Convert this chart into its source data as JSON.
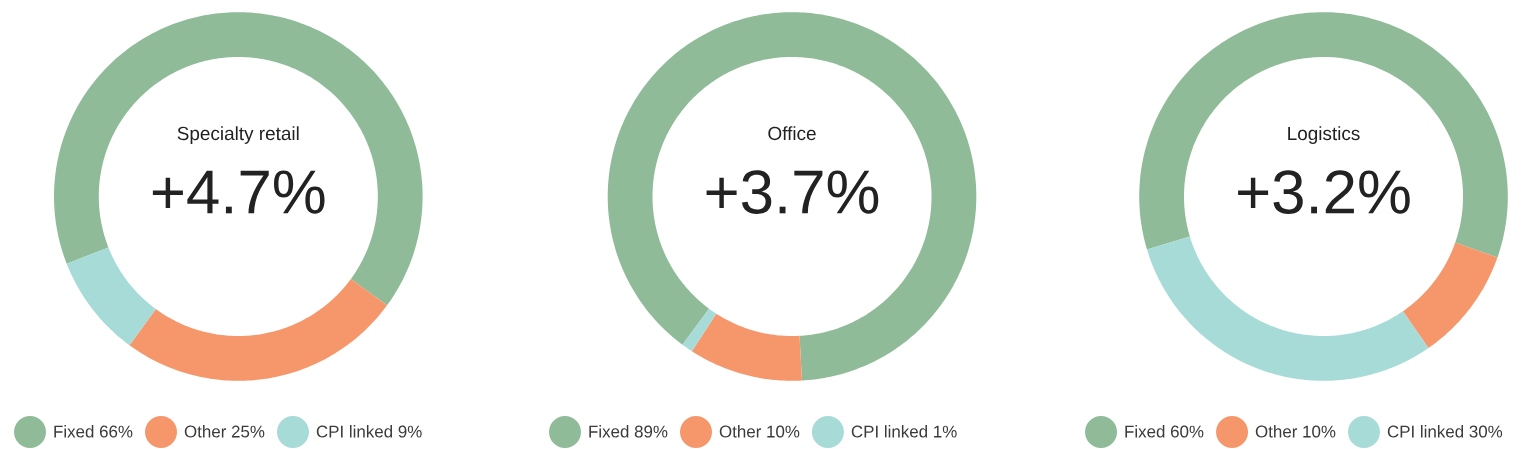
{
  "chart_data": [
    {
      "type": "donut",
      "title": "Specialty retail",
      "subtitle": "+4.7%",
      "categories": [
        "Fixed 66%",
        "Other 25%",
        "CPI linked 9%"
      ],
      "values": [
        66,
        25,
        9
      ],
      "colors": [
        "#8fbb99",
        "#f6976b",
        "#a7dbd7"
      ],
      "legend": "bottom"
    },
    {
      "type": "donut",
      "title": "Office",
      "subtitle": "+3.7%",
      "categories": [
        "Fixed 89%",
        "Other 10%",
        "CPI linked 1%"
      ],
      "values": [
        89,
        10,
        1
      ],
      "colors": [
        "#8fbb99",
        "#f6976b",
        "#a7dbd7"
      ],
      "legend": "bottom"
    },
    {
      "type": "donut",
      "title": "Logistics",
      "subtitle": "+3.2%",
      "categories": [
        "Fixed 60%",
        "Other 10%",
        "CPI linked 30%"
      ],
      "values": [
        60,
        10,
        30
      ],
      "colors": [
        "#8fbb99",
        "#f6976b",
        "#a7dbd7"
      ],
      "legend": "bottom"
    }
  ]
}
